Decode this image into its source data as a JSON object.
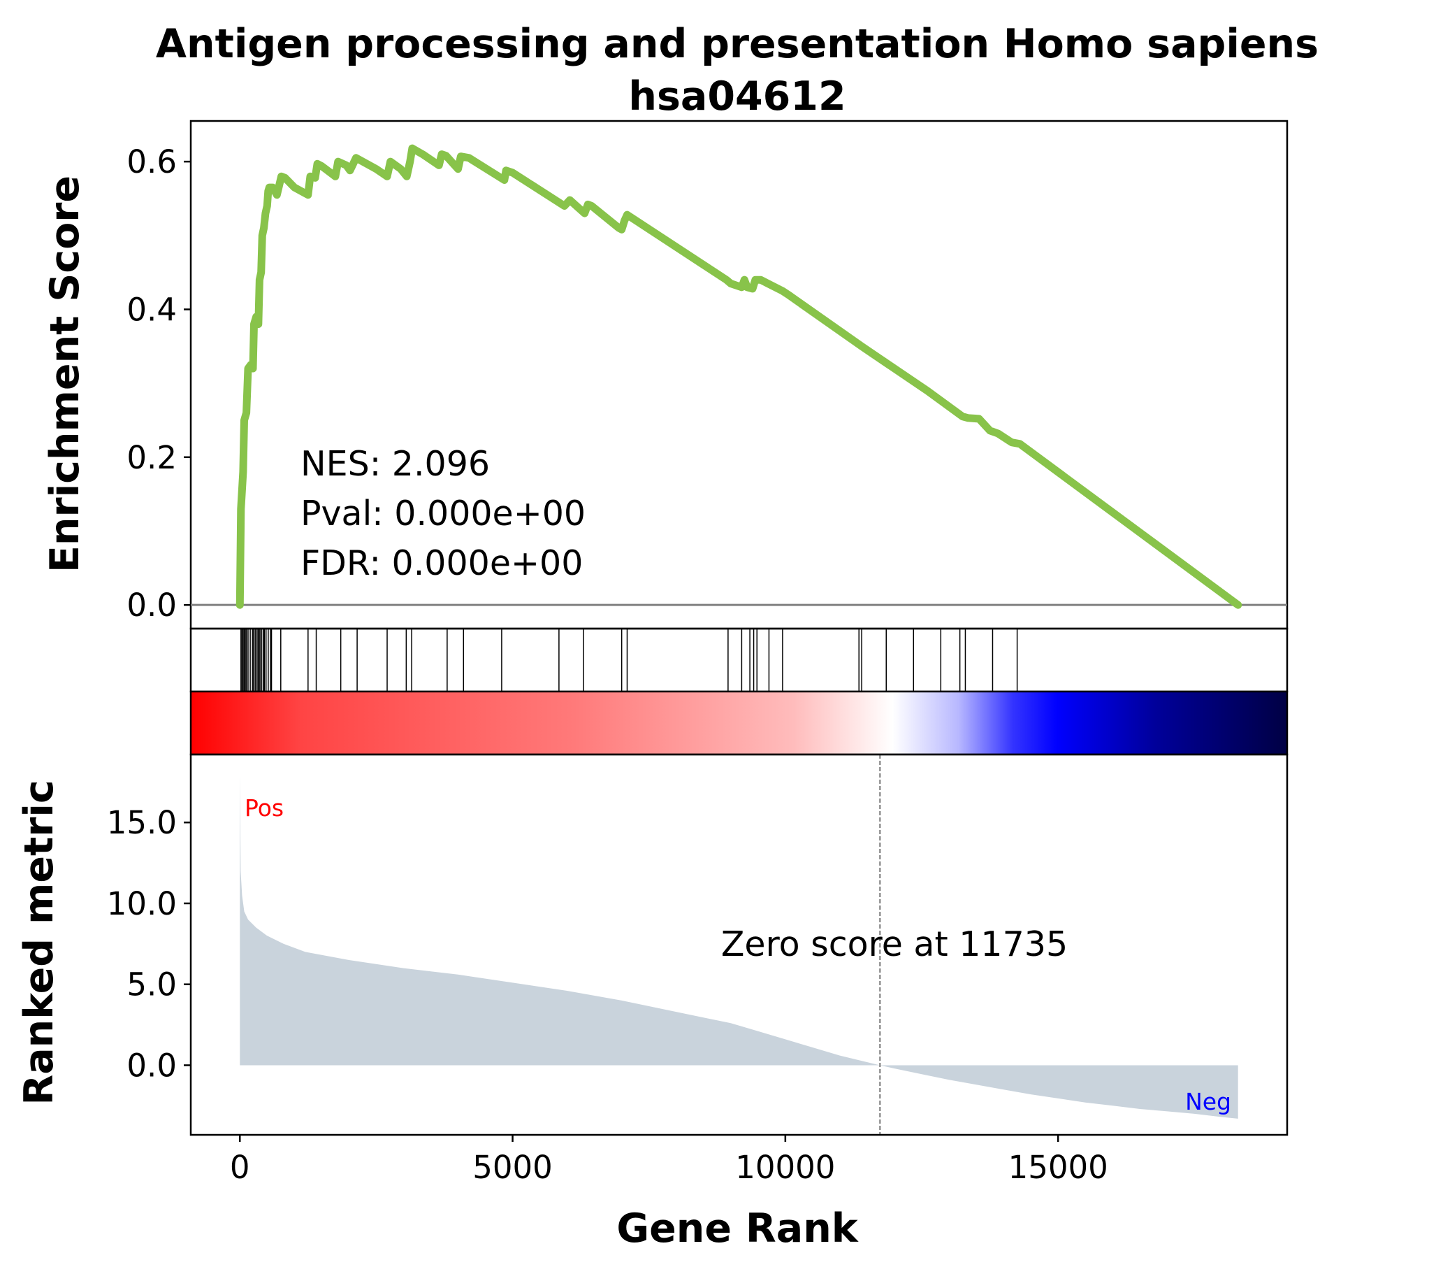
{
  "chart_data": {
    "type": "line",
    "title_line1": "Antigen processing and presentation Homo sapiens",
    "title_line2": "hsa04612",
    "xlabel": "Gene Rank",
    "colors": {
      "es_line": "#88c34a",
      "baseline": "#808080",
      "metric_fill": "#c9d3dc",
      "pos_label": "#ff0000",
      "neg_label": "#0000ff"
    },
    "enrichment_panel": {
      "ylabel": "Enrichment Score",
      "ylim": [
        -0.032,
        0.655
      ],
      "yticks": [
        0.0,
        0.2,
        0.4,
        0.6
      ],
      "ytick_labels": [
        "0.0",
        "0.2",
        "0.4",
        "0.6"
      ],
      "stats": [
        "NES: 2.096",
        "Pval: 0.000e+00",
        "FDR: 0.000e+00"
      ],
      "points": [
        [
          0,
          0.0
        ],
        [
          20,
          0.13
        ],
        [
          60,
          0.18
        ],
        [
          80,
          0.25
        ],
        [
          120,
          0.26
        ],
        [
          150,
          0.32
        ],
        [
          200,
          0.325
        ],
        [
          240,
          0.32
        ],
        [
          260,
          0.38
        ],
        [
          300,
          0.39
        ],
        [
          340,
          0.38
        ],
        [
          360,
          0.44
        ],
        [
          390,
          0.45
        ],
        [
          410,
          0.5
        ],
        [
          440,
          0.51
        ],
        [
          470,
          0.53
        ],
        [
          500,
          0.54
        ],
        [
          520,
          0.56
        ],
        [
          540,
          0.565
        ],
        [
          600,
          0.565
        ],
        [
          680,
          0.555
        ],
        [
          760,
          0.58
        ],
        [
          830,
          0.578
        ],
        [
          1000,
          0.565
        ],
        [
          1250,
          0.555
        ],
        [
          1290,
          0.58
        ],
        [
          1380,
          0.578
        ],
        [
          1420,
          0.597
        ],
        [
          1500,
          0.594
        ],
        [
          1750,
          0.58
        ],
        [
          1800,
          0.6
        ],
        [
          1950,
          0.595
        ],
        [
          2020,
          0.588
        ],
        [
          2130,
          0.605
        ],
        [
          2500,
          0.59
        ],
        [
          2700,
          0.58
        ],
        [
          2760,
          0.6
        ],
        [
          2950,
          0.59
        ],
        [
          3060,
          0.58
        ],
        [
          3120,
          0.6
        ],
        [
          3160,
          0.618
        ],
        [
          3350,
          0.61
        ],
        [
          3650,
          0.595
        ],
        [
          3700,
          0.61
        ],
        [
          3780,
          0.608
        ],
        [
          4000,
          0.59
        ],
        [
          4050,
          0.607
        ],
        [
          4200,
          0.605
        ],
        [
          4850,
          0.575
        ],
        [
          4880,
          0.588
        ],
        [
          5000,
          0.585
        ],
        [
          5950,
          0.54
        ],
        [
          6050,
          0.548
        ],
        [
          6200,
          0.538
        ],
        [
          6320,
          0.53
        ],
        [
          6380,
          0.542
        ],
        [
          6450,
          0.54
        ],
        [
          6950,
          0.51
        ],
        [
          7000,
          0.508
        ],
        [
          7050,
          0.52
        ],
        [
          7100,
          0.528
        ],
        [
          8920,
          0.44
        ],
        [
          9000,
          0.435
        ],
        [
          9200,
          0.43
        ],
        [
          9250,
          0.44
        ],
        [
          9300,
          0.43
        ],
        [
          9400,
          0.428
        ],
        [
          9450,
          0.44
        ],
        [
          9550,
          0.44
        ],
        [
          9680,
          0.435
        ],
        [
          9950,
          0.425
        ],
        [
          10050,
          0.42
        ],
        [
          11400,
          0.35
        ],
        [
          11500,
          0.345
        ],
        [
          12500,
          0.295
        ],
        [
          12600,
          0.29
        ],
        [
          13250,
          0.255
        ],
        [
          13350,
          0.253
        ],
        [
          13550,
          0.252
        ],
        [
          13750,
          0.236
        ],
        [
          13900,
          0.232
        ],
        [
          14150,
          0.22
        ],
        [
          14300,
          0.218
        ],
        [
          18300,
          0.0
        ]
      ]
    },
    "hits_panel": {
      "hits": [
        20,
        40,
        60,
        80,
        100,
        120,
        150,
        190,
        230,
        250,
        280,
        300,
        330,
        350,
        370,
        400,
        430,
        450,
        480,
        520,
        560,
        580,
        750,
        1250,
        1400,
        1850,
        2150,
        2700,
        3050,
        3150,
        3800,
        4100,
        4800,
        5850,
        6300,
        7000,
        7100,
        8950,
        9200,
        9350,
        9420,
        9480,
        9700,
        9950,
        11350,
        11400,
        11850,
        12350,
        12850,
        13200,
        13300,
        13800,
        14250
      ]
    },
    "metric_panel": {
      "ylabel": "Ranked metric",
      "ylim": [
        -4.3,
        19.2
      ],
      "yticks": [
        0.0,
        5.0,
        10.0,
        15.0
      ],
      "ytick_labels": [
        "0.0",
        "5.0",
        "10.0",
        "15.0"
      ],
      "pos_label": "Pos",
      "neg_label": "Neg",
      "zero_rank": 11735,
      "annotation": "Zero score at 11735",
      "points": [
        [
          0,
          18.0
        ],
        [
          15,
          12.0
        ],
        [
          40,
          10.5
        ],
        [
          80,
          9.5
        ],
        [
          150,
          9.0
        ],
        [
          300,
          8.5
        ],
        [
          500,
          8.0
        ],
        [
          800,
          7.5
        ],
        [
          1200,
          7.0
        ],
        [
          2000,
          6.5
        ],
        [
          3000,
          6.0
        ],
        [
          4000,
          5.6
        ],
        [
          5000,
          5.1
        ],
        [
          6000,
          4.6
        ],
        [
          7000,
          4.0
        ],
        [
          8000,
          3.3
        ],
        [
          9000,
          2.6
        ],
        [
          9500,
          2.1
        ],
        [
          10000,
          1.6
        ],
        [
          10500,
          1.1
        ],
        [
          11000,
          0.6
        ],
        [
          11735,
          0.0
        ],
        [
          12000,
          -0.2
        ],
        [
          12500,
          -0.55
        ],
        [
          13000,
          -0.9
        ],
        [
          13500,
          -1.2
        ],
        [
          14000,
          -1.5
        ],
        [
          14500,
          -1.8
        ],
        [
          15000,
          -2.05
        ],
        [
          15500,
          -2.3
        ],
        [
          16000,
          -2.5
        ],
        [
          16500,
          -2.7
        ],
        [
          17000,
          -2.85
        ],
        [
          17500,
          -3.0
        ],
        [
          18000,
          -3.2
        ],
        [
          18300,
          -3.3
        ]
      ]
    },
    "x_axis": {
      "xlim": [
        -900,
        19200
      ],
      "ticks": [
        0,
        5000,
        10000,
        15000
      ],
      "tick_labels": [
        "0",
        "5000",
        "10000",
        "15000"
      ]
    }
  }
}
